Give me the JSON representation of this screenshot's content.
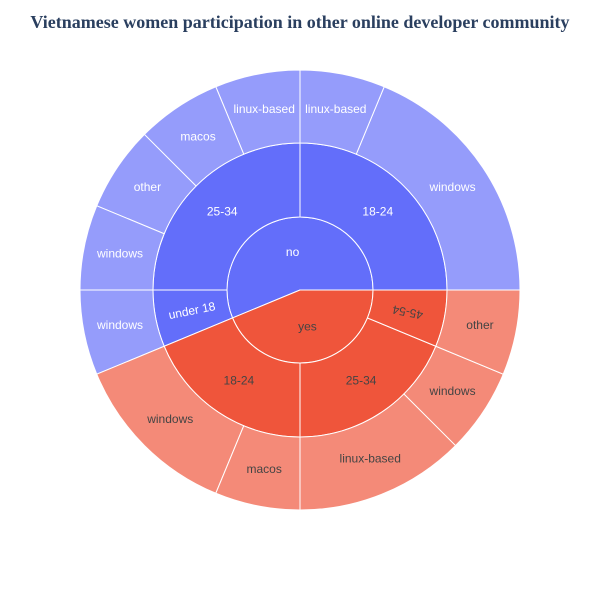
{
  "chart_data": {
    "type": "sunburst",
    "title": "Vietnamese women participation in other online developer community",
    "children": [
      {
        "label": "no",
        "value": 9,
        "color": "#636efa",
        "leaf_color": "#959cfb",
        "text_color": "#ffffff",
        "children": [
          {
            "label": "18-24",
            "value": 4,
            "children": [
              {
                "label": "windows",
                "value": 3
              },
              {
                "label": "linux-based",
                "value": 1
              }
            ]
          },
          {
            "label": "25-34",
            "value": 4,
            "children": [
              {
                "label": "linux-based",
                "value": 1
              },
              {
                "label": "macos",
                "value": 1
              },
              {
                "label": "other",
                "value": 1
              },
              {
                "label": "windows",
                "value": 1
              }
            ]
          },
          {
            "label": "under 18",
            "value": 1,
            "children": [
              {
                "label": "windows",
                "value": 1
              }
            ]
          }
        ]
      },
      {
        "label": "yes",
        "value": 7,
        "color": "#ef553b",
        "leaf_color": "#f48a78",
        "text_color": "#444444",
        "children": [
          {
            "label": "18-24",
            "value": 3,
            "children": [
              {
                "label": "windows",
                "value": 2
              },
              {
                "label": "macos",
                "value": 1
              }
            ]
          },
          {
            "label": "25-34",
            "value": 3,
            "children": [
              {
                "label": "linux-based",
                "value": 2
              },
              {
                "label": "windows",
                "value": 1
              }
            ]
          },
          {
            "label": "45-54",
            "value": 1,
            "children": [
              {
                "label": "other",
                "value": 1
              }
            ]
          }
        ]
      }
    ]
  }
}
